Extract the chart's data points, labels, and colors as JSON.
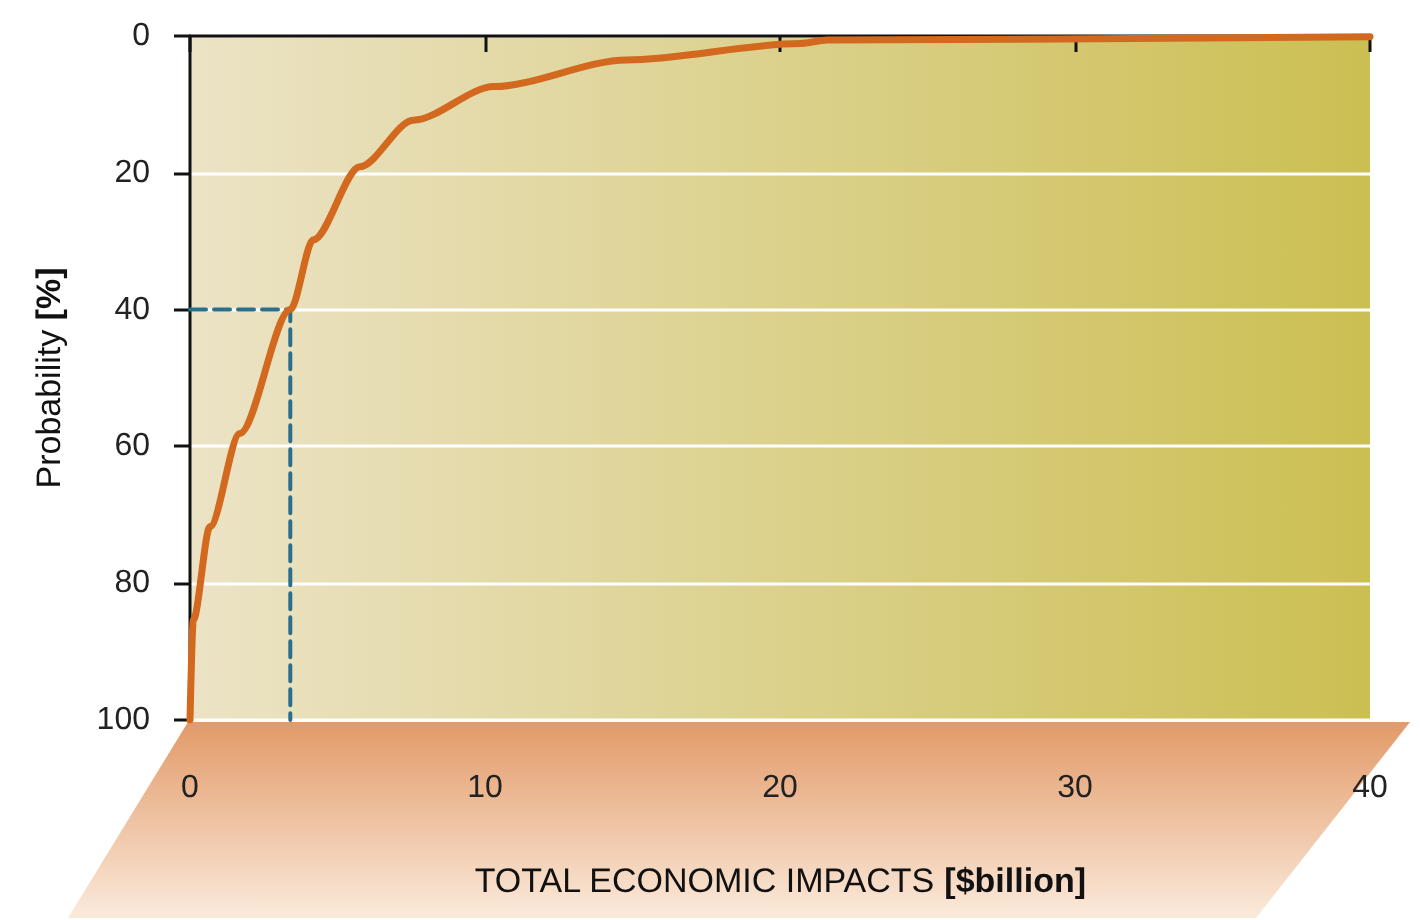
{
  "chart_data": {
    "type": "line",
    "xlabel": "TOTAL ECONOMIC IMPACTS [$billion]",
    "ylabel": "Probability [%]",
    "series": [
      {
        "color": "#d2691e",
        "x": [
          0,
          0.11,
          0.68,
          1.69,
          3.4,
          4.18,
          5.76,
          7.57,
          10.3,
          14.8,
          20.7,
          21.6,
          40
        ],
        "values": [
          100,
          85.4,
          71.7,
          58.1,
          40,
          29.8,
          19.1,
          12.3,
          7.4,
          3.5,
          1.1,
          0.6,
          0.1
        ]
      },
      {
        "color": "#2b6f8f",
        "line_style": "dashed",
        "x": [
          0,
          3.4,
          3.4
        ],
        "values": [
          40,
          40,
          100
        ]
      }
    ],
    "xlim": [
      0,
      40
    ],
    "xticks": [
      0,
      10,
      20,
      30,
      40
    ],
    "ylim": [
      100,
      0
    ],
    "yticks": [
      0,
      20,
      40,
      60,
      80,
      100
    ],
    "grid": "y",
    "marker": "none"
  }
}
